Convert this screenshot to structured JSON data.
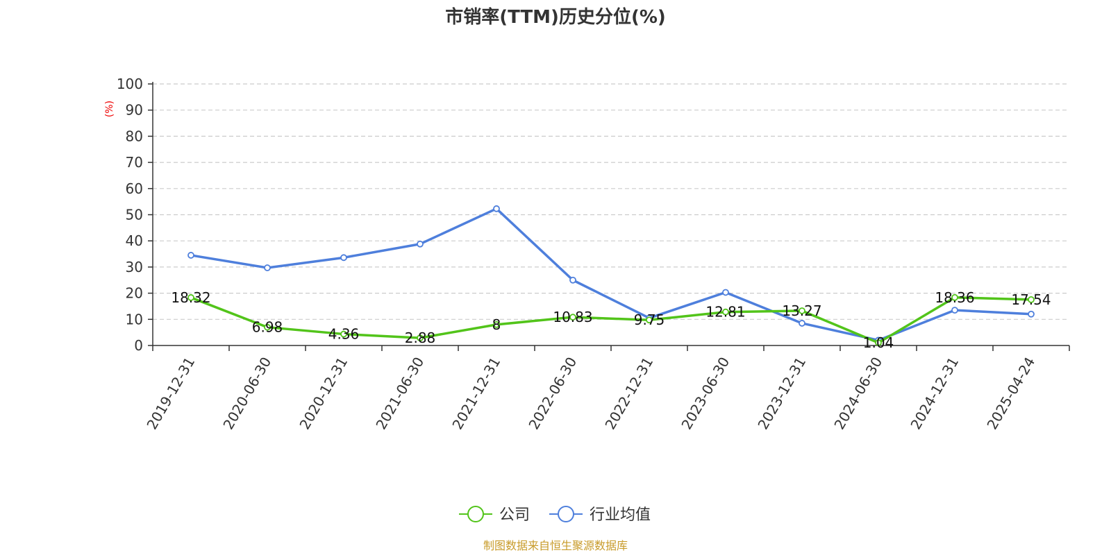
{
  "chart_data": {
    "type": "line",
    "title": "市销率(TTM)历史分位(%)",
    "ylabel": "(%)",
    "ylim": [
      0,
      100
    ],
    "yticks": [
      "0",
      "10",
      "20",
      "30",
      "40",
      "50",
      "60",
      "70",
      "80",
      "90",
      "100"
    ],
    "categories": [
      "2019-12-31",
      "2020-06-30",
      "2020-12-31",
      "2021-06-30",
      "2021-12-31",
      "2022-06-30",
      "2022-12-31",
      "2023-06-30",
      "2023-12-31",
      "2024-06-30",
      "2024-12-31",
      "2025-04-24"
    ],
    "grid": true,
    "legend_position": "bottom-center",
    "series": [
      {
        "name": "公司",
        "color": "#52c41a",
        "values": [
          18.32,
          6.98,
          4.36,
          2.88,
          8,
          10.83,
          9.75,
          12.81,
          13.27,
          1.04,
          18.36,
          17.54
        ],
        "labels": [
          "18.32",
          "6.98",
          "4.36",
          "2.88",
          "8",
          "10.83",
          "9.75",
          "12.81",
          "13.27",
          "1.04",
          "18.36",
          "17.54"
        ]
      },
      {
        "name": "行业均值",
        "color": "#4e7fdc",
        "values": [
          34.5,
          29.7,
          33.6,
          38.8,
          52.3,
          25.0,
          10.5,
          20.3,
          8.5,
          2.0,
          13.5,
          12.0
        ]
      }
    ]
  },
  "source_text": "制图数据来自恒生聚源数据库"
}
